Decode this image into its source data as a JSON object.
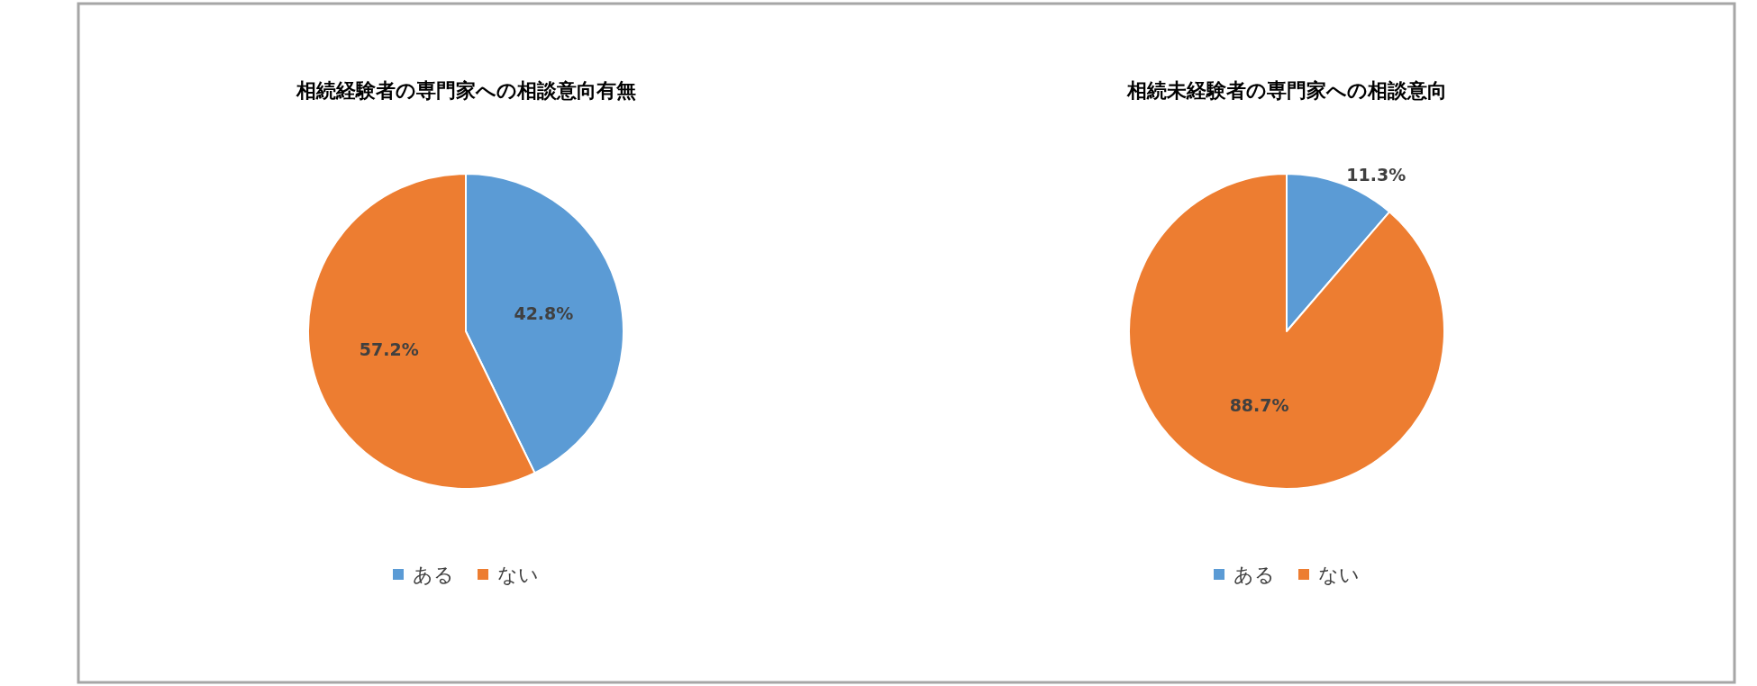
{
  "chart_data": [
    {
      "type": "pie",
      "title": "相続経験者の専門家への相談意向有無",
      "categories": [
        "ある",
        "ない"
      ],
      "values": [
        42.8,
        57.2
      ],
      "colors": [
        "#5b9bd5",
        "#ed7d31"
      ],
      "value_labels": [
        "42.8%",
        "57.2%"
      ],
      "legend": "bottom"
    },
    {
      "type": "pie",
      "title": "相続未経験者の専門家への相談意向",
      "categories": [
        "ある",
        "ない"
      ],
      "values": [
        11.3,
        88.7
      ],
      "colors": [
        "#5b9bd5",
        "#ed7d31"
      ],
      "value_labels": [
        "11.3%",
        "88.7%"
      ],
      "legend": "bottom"
    }
  ]
}
